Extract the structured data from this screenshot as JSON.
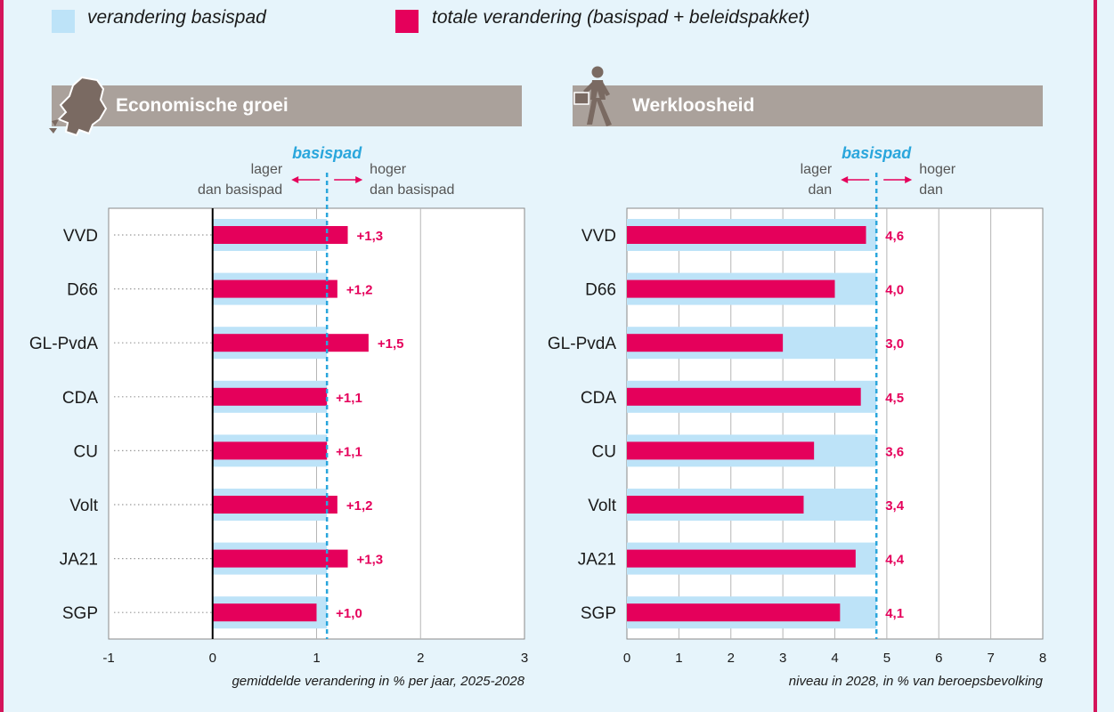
{
  "legend": {
    "base_label": "verandering basispad",
    "total_label": "totale verandering (basispad + beleidspakket)"
  },
  "colors": {
    "background": "#e6f4fb",
    "base": "#bde3f8",
    "total": "#e5005b",
    "baseline": "#2aa6dc",
    "header": "#aaa19b",
    "frame": "#d4145a"
  },
  "panels": {
    "growth": {
      "title": "Economische groei",
      "icon": "netherlands-map-icon"
    },
    "unemployment": {
      "title": "Werkloosheid",
      "icon": "walking-person-briefcase-icon"
    }
  },
  "chart_data": [
    {
      "type": "bar",
      "orientation": "horizontal",
      "title": "Economische groei",
      "categories": [
        "VVD",
        "D66",
        "GL-PvdA",
        "CDA",
        "CU",
        "Volt",
        "JA21",
        "SGP"
      ],
      "series": [
        {
          "name": "verandering basispad",
          "values": [
            1.1,
            1.1,
            1.1,
            1.1,
            1.1,
            1.1,
            1.1,
            1.1
          ]
        },
        {
          "name": "totale verandering (basispad + beleidspakket)",
          "values": [
            1.3,
            1.2,
            1.5,
            1.1,
            1.1,
            1.2,
            1.3,
            1.0
          ]
        }
      ],
      "data_labels": [
        "+1,3",
        "+1,2",
        "+1,5",
        "+1,1",
        "+1,1",
        "+1,2",
        "+1,3",
        "+1,0"
      ],
      "baseline": {
        "value": 1.1,
        "label": "basispad"
      },
      "annotations": {
        "lower": [
          "lager",
          "dan basispad"
        ],
        "higher": [
          "hoger",
          "dan basispad"
        ]
      },
      "xlim": [
        -1,
        3
      ],
      "xticks": [
        -1,
        0,
        1,
        2,
        3
      ],
      "xtick_labels": [
        "-1",
        "0",
        "1",
        "2",
        "3"
      ],
      "xlabel": "gemiddelde verandering in % per jaar, 2025-2028",
      "zero_line": true
    },
    {
      "type": "bar",
      "orientation": "horizontal",
      "title": "Werkloosheid",
      "categories": [
        "VVD",
        "D66",
        "GL-PvdA",
        "CDA",
        "CU",
        "Volt",
        "JA21",
        "SGP"
      ],
      "series": [
        {
          "name": "verandering basispad",
          "values": [
            4.8,
            4.8,
            4.8,
            4.8,
            4.8,
            4.8,
            4.8,
            4.8
          ]
        },
        {
          "name": "totale verandering (basispad + beleidspakket)",
          "values": [
            4.6,
            4.0,
            3.0,
            4.5,
            3.6,
            3.4,
            4.4,
            4.1
          ]
        }
      ],
      "data_labels": [
        "4,6",
        "4,0",
        "3,0",
        "4,5",
        "3,6",
        "3,4",
        "4,4",
        "4,1"
      ],
      "baseline": {
        "value": 4.8,
        "label": "basispad"
      },
      "annotations": {
        "lower": [
          "lager",
          "dan"
        ],
        "higher": [
          "hoger",
          "dan"
        ]
      },
      "xlim": [
        0,
        8
      ],
      "xticks": [
        0,
        1,
        2,
        3,
        4,
        5,
        6,
        7,
        8
      ],
      "xtick_labels": [
        "0",
        "1",
        "2",
        "3",
        "4",
        "5",
        "6",
        "7",
        "8"
      ],
      "xlabel": "niveau in 2028, in % van beroepsbevolking",
      "zero_line": false
    }
  ]
}
